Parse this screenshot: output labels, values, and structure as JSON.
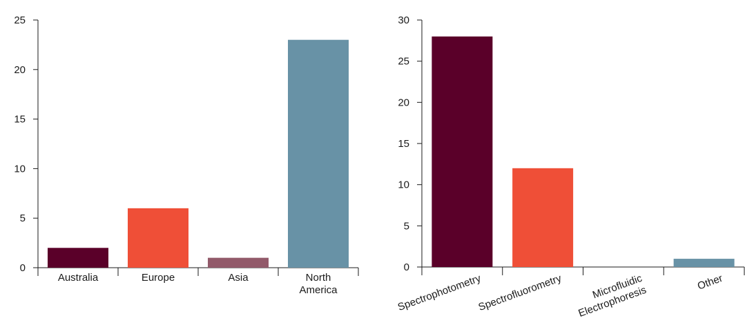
{
  "chart_data": [
    {
      "type": "bar",
      "title": "",
      "xlabel": "",
      "ylabel": "",
      "categories": [
        "Australia",
        "Europe",
        "Asia",
        "North America"
      ],
      "category_lines": [
        [
          "Australia"
        ],
        [
          "Europe"
        ],
        [
          "Asia"
        ],
        [
          "North",
          "America"
        ]
      ],
      "values": [
        2,
        6,
        1,
        23
      ],
      "colors": [
        "#5a0029",
        "#ef4f37",
        "#925a6a",
        "#6892a6"
      ],
      "ylim": [
        0,
        25
      ],
      "yticks": [
        0,
        5,
        10,
        15,
        20,
        25
      ],
      "grid": false,
      "legend": "none"
    },
    {
      "type": "bar",
      "title": "",
      "xlabel": "",
      "ylabel": "",
      "categories": [
        "Spectrophotometry",
        "Spectrofluorometry",
        "Microfluidic Electrophoresis",
        "Other"
      ],
      "category_lines": [
        [
          "Spectrophotometry"
        ],
        [
          "Spectrofluorometry"
        ],
        [
          "Microfluidic",
          "Electrophoresis"
        ],
        [
          "Other"
        ]
      ],
      "values": [
        28,
        12,
        0,
        1
      ],
      "colors": [
        "#5a0029",
        "#ef4f37",
        "#925a6a",
        "#6892a6"
      ],
      "ylim": [
        0,
        30
      ],
      "yticks": [
        0,
        5,
        10,
        15,
        20,
        25,
        30
      ],
      "grid": false,
      "legend": "none",
      "label_rotation": "diagonal"
    }
  ]
}
